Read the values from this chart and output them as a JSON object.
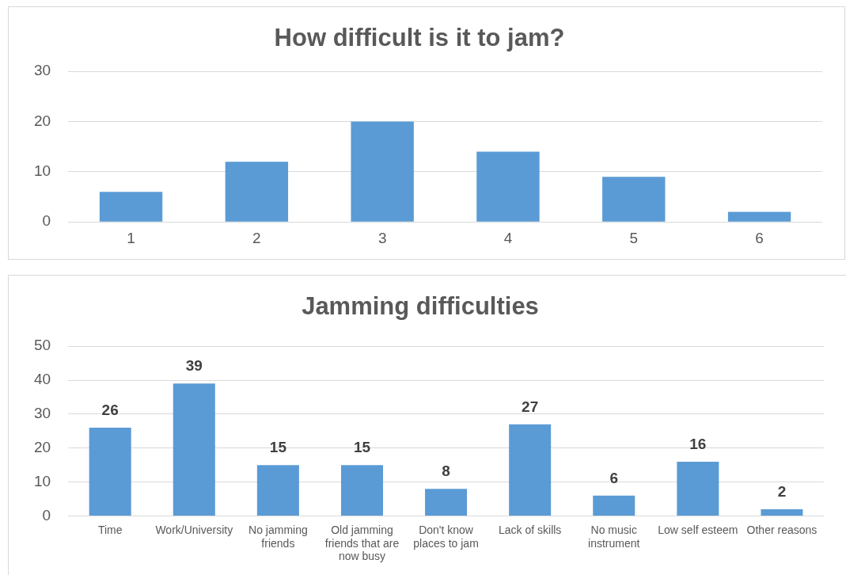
{
  "chart_data": [
    {
      "type": "bar",
      "title": "How difficult is it to jam?",
      "categories": [
        "1",
        "2",
        "3",
        "4",
        "5",
        "6"
      ],
      "values": [
        6,
        12,
        20,
        14,
        9,
        2
      ],
      "color": "#5b9bd5",
      "ylim": [
        0,
        30
      ],
      "yticks": [
        0,
        10,
        20,
        30
      ],
      "grid": "y"
    },
    {
      "type": "bar",
      "title": "Jamming difficulties",
      "categories": [
        "Time",
        "Work/University",
        "No jamming friends",
        "Old jamming friends that are now busy",
        "Don't know places to jam",
        "Lack of skills",
        "No music instrument",
        "Low self esteem",
        "Other reasons"
      ],
      "values": [
        26,
        39,
        15,
        15,
        8,
        27,
        6,
        16,
        2
      ],
      "color": "#5b9bd5",
      "ylim": [
        0,
        50
      ],
      "yticks": [
        0,
        10,
        20,
        30,
        40,
        50
      ],
      "grid": "y",
      "data_labels": true
    }
  ]
}
